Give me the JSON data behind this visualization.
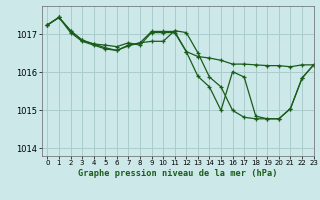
{
  "title": "Graphe pression niveau de la mer (hPa)",
  "bg_color": "#cce8e8",
  "grid_color": "#aacccc",
  "line_color": "#1a5c1a",
  "xlim": [
    -0.5,
    23
  ],
  "ylim": [
    1013.8,
    1017.75
  ],
  "yticks": [
    1014,
    1015,
    1016,
    1017
  ],
  "xticks": [
    0,
    1,
    2,
    3,
    4,
    5,
    6,
    7,
    8,
    9,
    10,
    11,
    12,
    13,
    14,
    15,
    16,
    17,
    18,
    19,
    20,
    21,
    22,
    23
  ],
  "series": [
    [
      1017.25,
      1017.45,
      1017.1,
      1016.85,
      1016.75,
      1016.72,
      1016.68,
      1016.78,
      1016.72,
      1017.05,
      1017.05,
      1017.05,
      1016.55,
      1016.42,
      1016.38,
      1016.32,
      1016.22,
      1016.22,
      1016.2,
      1016.18,
      1016.18,
      1016.15,
      1016.2,
      1016.2
    ],
    [
      1017.25,
      1017.45,
      1017.1,
      1016.85,
      1016.75,
      1016.65,
      1016.58,
      1016.72,
      1016.78,
      1017.08,
      1017.08,
      1017.08,
      1016.55,
      1015.9,
      1015.62,
      1015.0,
      1016.02,
      1015.88,
      1014.85,
      1014.78,
      1014.78,
      1015.05,
      1015.85,
      1016.2
    ],
    [
      1017.25,
      1017.45,
      1017.05,
      1016.82,
      1016.72,
      1016.62,
      1016.58,
      1016.7,
      1016.78,
      1016.82,
      1016.82,
      1017.1,
      1017.05,
      1016.52,
      1015.88,
      1015.62,
      1015.0,
      1014.82,
      1014.78,
      1014.78,
      1014.78,
      1015.05,
      1015.85,
      1016.2
    ]
  ]
}
